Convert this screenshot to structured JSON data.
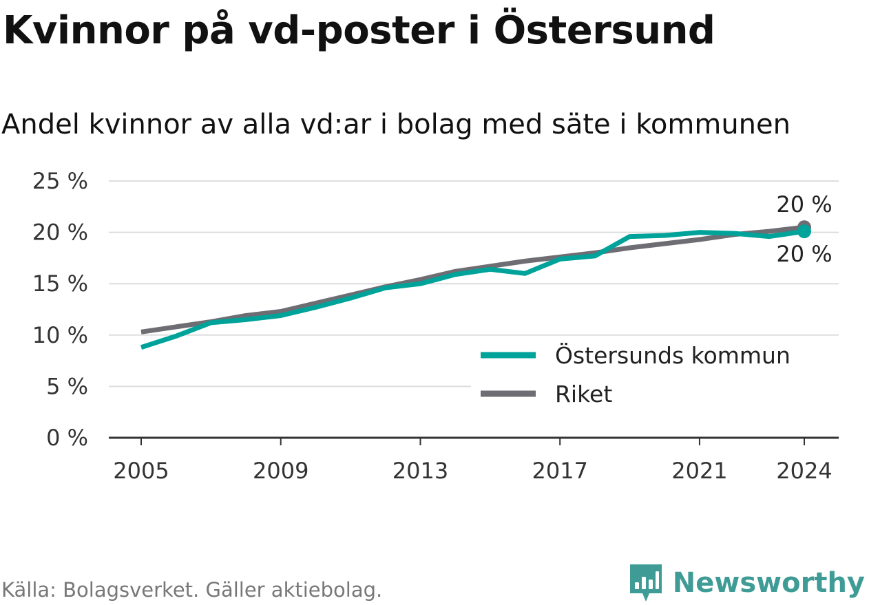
{
  "title": "Kvinnor på vd-poster i Östersund",
  "subtitle": "Andel kvinnor av alla vd:ar i bolag med säte i kommunen",
  "source": "Källa: Bolagsverket. Gäller aktiebolag.",
  "brand": "Newsworthy",
  "colors": {
    "ostersund": "#00a39a",
    "riket": "#6e6d73",
    "grid": "#dddddd",
    "axis": "#333333",
    "brand": "#3f9b95"
  },
  "chart_data": {
    "type": "line",
    "title": "Kvinnor på vd-poster i Östersund",
    "subtitle": "Andel kvinnor av alla vd:ar i bolag med säte i kommunen",
    "xlabel": "",
    "ylabel": "",
    "ylim": [
      0,
      25
    ],
    "xlim": [
      2005,
      2024
    ],
    "y_ticks": [
      0,
      5,
      10,
      15,
      20,
      25
    ],
    "y_tick_labels": [
      "0 %",
      "5 %",
      "10 %",
      "15 %",
      "20 %",
      "25 %"
    ],
    "x_ticks": [
      2005,
      2009,
      2013,
      2017,
      2021,
      2024
    ],
    "x_tick_labels": [
      "2005",
      "2009",
      "2013",
      "2017",
      "2021",
      "2024"
    ],
    "grid": true,
    "legend_position": "bottom-right",
    "x": [
      2005,
      2006,
      2007,
      2008,
      2009,
      2010,
      2011,
      2012,
      2013,
      2014,
      2015,
      2016,
      2017,
      2018,
      2019,
      2020,
      2021,
      2022,
      2023,
      2024
    ],
    "series": [
      {
        "name": "Östersunds kommun",
        "color": "#00a39a",
        "values": [
          8.8,
          9.9,
          11.2,
          11.5,
          11.9,
          12.7,
          13.6,
          14.6,
          15.0,
          15.9,
          16.4,
          16.0,
          17.4,
          17.7,
          19.6,
          19.7,
          20.0,
          19.9,
          19.6,
          20.1
        ],
        "end_label": "20 %"
      },
      {
        "name": "Riket",
        "color": "#6e6d73",
        "values": [
          10.3,
          10.8,
          11.3,
          11.9,
          12.3,
          13.1,
          13.9,
          14.7,
          15.4,
          16.2,
          16.7,
          17.2,
          17.6,
          18.0,
          18.5,
          18.9,
          19.3,
          19.8,
          20.1,
          20.5
        ],
        "end_label": "20 %"
      }
    ]
  }
}
